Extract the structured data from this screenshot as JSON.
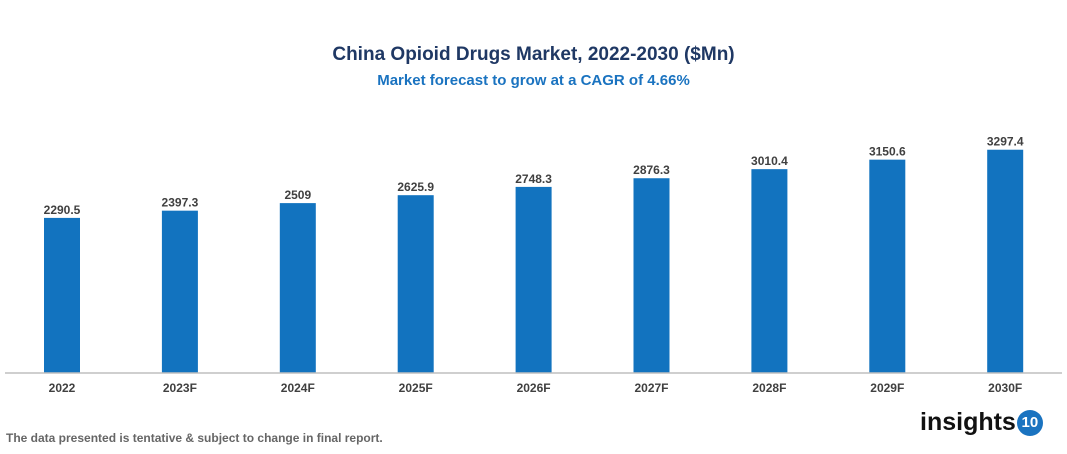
{
  "chart_data": {
    "type": "bar",
    "title": "China Opioid Drugs Market, 2022-2030 ($Mn)",
    "subtitle": "Market forecast to grow at a CAGR of 4.66%",
    "categories": [
      "2022",
      "2023F",
      "2024F",
      "2025F",
      "2026F",
      "2027F",
      "2028F",
      "2029F",
      "2030F"
    ],
    "values": [
      2290.5,
      2397.3,
      2509,
      2625.9,
      2748.3,
      2876.3,
      3010.4,
      3150.6,
      3297.4
    ],
    "labels": [
      "2290.5",
      "2397.3",
      "2509",
      "2625.9",
      "2748.3",
      "2876.3",
      "3010.4",
      "3150.6",
      "3297.4"
    ],
    "xlabel": "",
    "ylabel": "",
    "ylim": [
      0,
      3500
    ],
    "grid": false,
    "bar_color": "#1273bf"
  },
  "footnote": "The data presented is tentative & subject to change in final report.",
  "logo": {
    "text": "insights",
    "badge": "10"
  }
}
